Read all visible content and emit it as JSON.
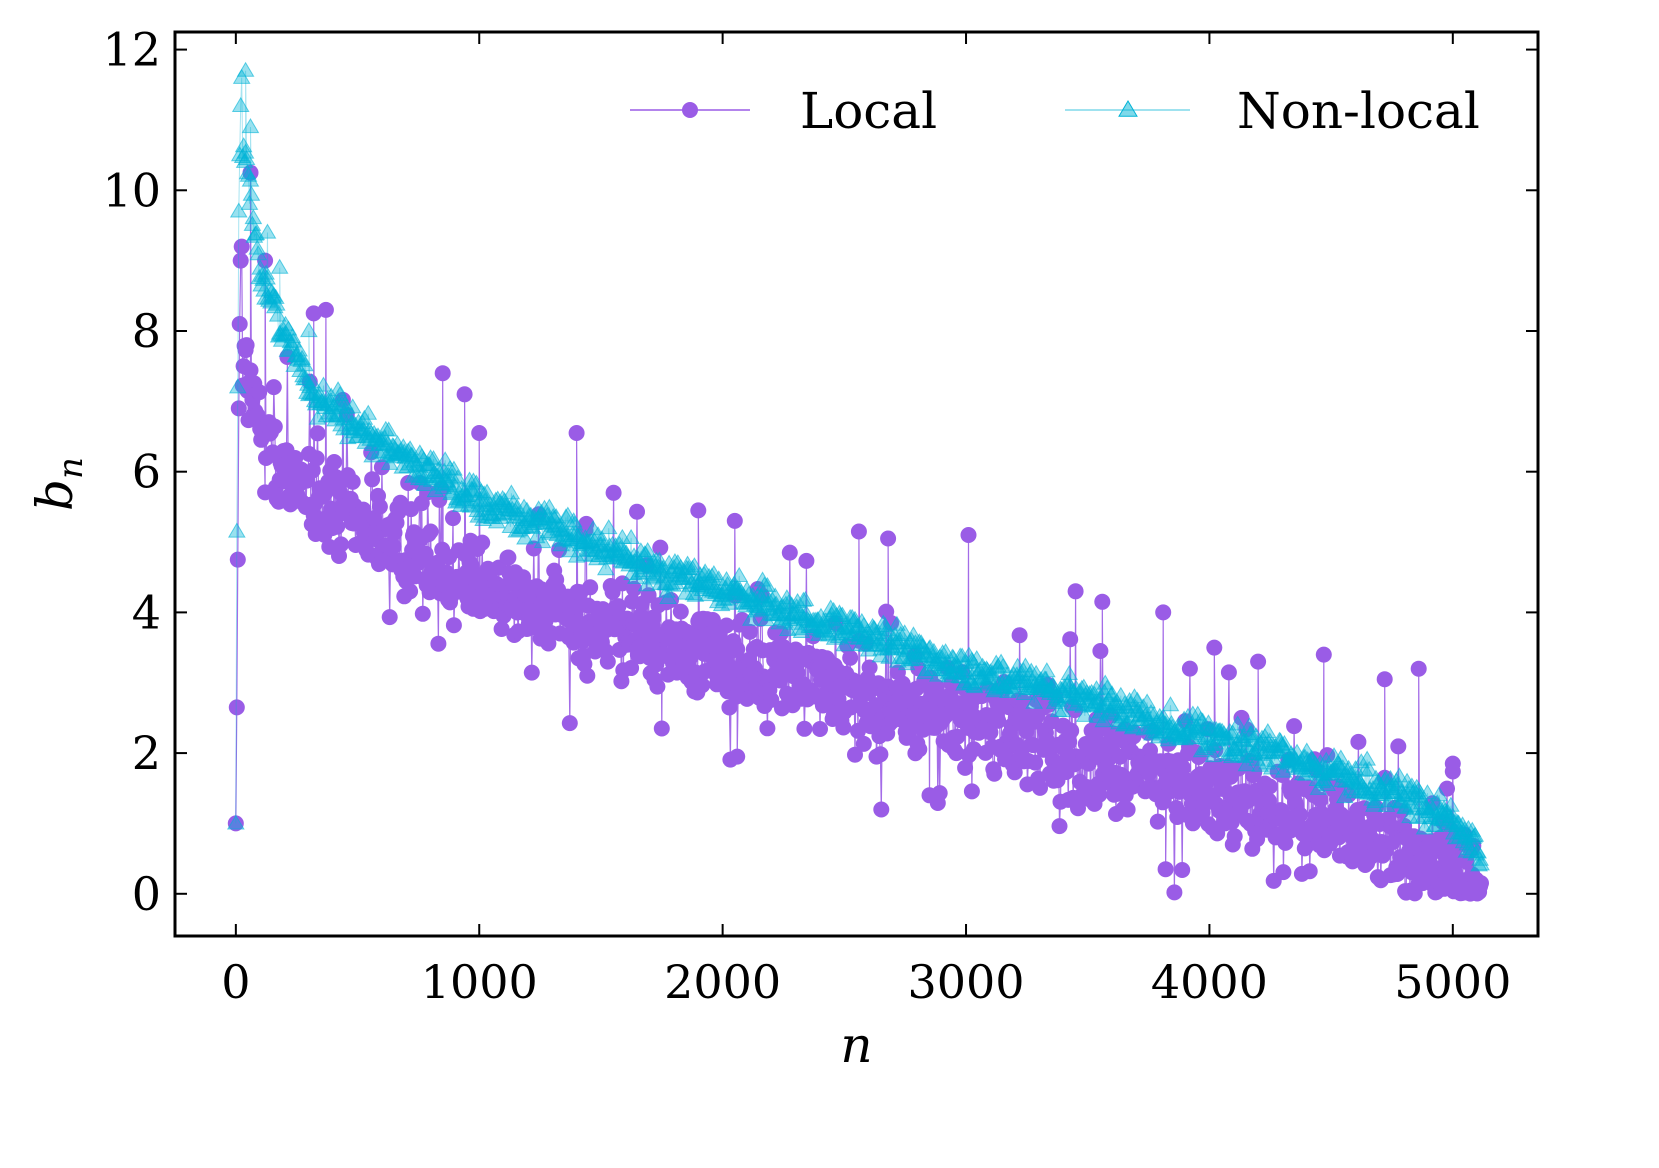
{
  "chart_data": {
    "type": "scatter",
    "title": "",
    "xlabel": "n",
    "ylabel": "b_n",
    "ylabel_base": "b",
    "ylabel_sub": "n",
    "xlim": [
      -250,
      5350
    ],
    "ylim": [
      -0.6,
      12.25
    ],
    "xticks": [
      0,
      1000,
      2000,
      3000,
      4000,
      5000
    ],
    "xtick_labels": [
      "0",
      "1000",
      "2000",
      "3000",
      "4000",
      "5000"
    ],
    "yticks": [
      0,
      2,
      4,
      6,
      8,
      10,
      12
    ],
    "ytick_labels": [
      "0",
      "2",
      "4",
      "6",
      "8",
      "10",
      "12"
    ],
    "grid": false,
    "legend": "top-right",
    "n_points": 5120,
    "series": [
      {
        "name": "Local",
        "color": "#9a5ce6",
        "marker": "circle",
        "alpha": 1.0,
        "start_values": [
          1.0,
          2.65,
          4.75,
          6.9,
          8.1,
          9.0,
          9.2
        ],
        "trend_x": [
          0,
          10,
          60,
          200,
          500,
          1000,
          1500,
          2000,
          2500,
          3000,
          3500,
          4000,
          4500,
          5000,
          5120
        ],
        "trend_y": [
          7.0,
          8.3,
          7.0,
          6.0,
          5.2,
          4.4,
          3.8,
          3.4,
          2.9,
          2.45,
          1.95,
          1.45,
          0.95,
          0.35,
          0.05
        ],
        "spread": 0.9,
        "outliers": [
          [
            60,
            10.25
          ],
          [
            120,
            9.0
          ],
          [
            320,
            8.25
          ],
          [
            370,
            8.3
          ],
          [
            850,
            7.4
          ],
          [
            940,
            7.1
          ],
          [
            1000,
            6.55
          ],
          [
            1400,
            6.55
          ],
          [
            1900,
            5.45
          ],
          [
            2050,
            5.3
          ],
          [
            2560,
            5.15
          ],
          [
            2680,
            5.05
          ],
          [
            3010,
            5.1
          ],
          [
            3450,
            4.3
          ],
          [
            3560,
            4.15
          ],
          [
            3810,
            4.0
          ],
          [
            4020,
            3.5
          ],
          [
            4200,
            3.3
          ],
          [
            4470,
            3.4
          ],
          [
            4720,
            3.05
          ],
          [
            4860,
            3.2
          ],
          [
            5000,
            1.85
          ],
          [
            3820,
            0.35
          ],
          [
            1750,
            2.35
          ],
          [
            2060,
            1.95
          ],
          [
            2850,
            1.4
          ]
        ]
      },
      {
        "name": "Non-local",
        "color": "#00b3d6",
        "marker": "triangle",
        "alpha": 0.4,
        "start_values": [
          1.0,
          5.15,
          7.2,
          9.7,
          10.5,
          11.2,
          11.6
        ],
        "trend_x": [
          0,
          10,
          40,
          100,
          300,
          600,
          1000,
          1500,
          2000,
          2500,
          3000,
          3500,
          4000,
          4500,
          4800,
          5000,
          5100,
          5120
        ],
        "trend_y": [
          9.5,
          10.8,
          10.5,
          8.8,
          7.2,
          6.4,
          5.6,
          4.9,
          4.3,
          3.75,
          3.2,
          2.75,
          2.25,
          1.75,
          1.4,
          1.0,
          0.55,
          0.2
        ],
        "spread": 0.38,
        "outliers": [
          [
            40,
            11.7
          ],
          [
            60,
            10.9
          ],
          [
            130,
            9.4
          ],
          [
            180,
            8.9
          ],
          [
            300,
            8.0
          ]
        ]
      }
    ]
  }
}
